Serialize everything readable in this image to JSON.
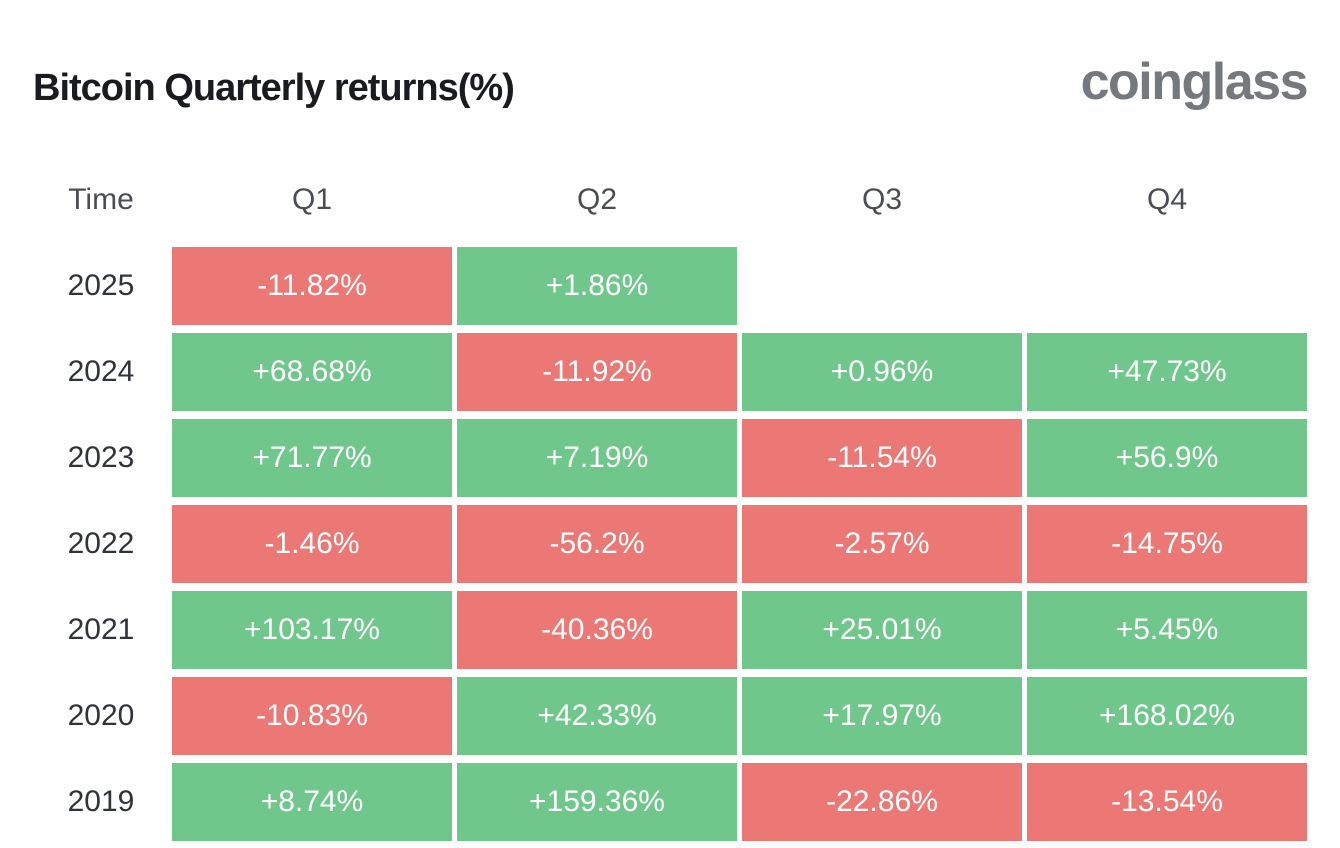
{
  "page": {
    "title": "Bitcoin Quarterly returns(%)",
    "logo": "coinglass"
  },
  "colors": {
    "positive": "#70C78C",
    "negative": "#EB7874",
    "cell_text": "#FFFFFF",
    "title_text": "#1A1B1F",
    "header_text": "#4A4D53",
    "year_text": "#303338",
    "logo_text": "#75787C",
    "background": "#FFFFFF"
  },
  "chart_data": {
    "type": "table",
    "title": "Bitcoin Quarterly returns(%)",
    "columns": [
      "Time",
      "Q1",
      "Q2",
      "Q3",
      "Q4"
    ],
    "legend": {
      "positive_color": "#70C78C",
      "negative_color": "#EB7874"
    },
    "rows": [
      {
        "year": "2025",
        "values": [
          "-11.82%",
          "+1.86%",
          null,
          null
        ]
      },
      {
        "year": "2024",
        "values": [
          "+68.68%",
          "-11.92%",
          "+0.96%",
          "+47.73%"
        ]
      },
      {
        "year": "2023",
        "values": [
          "+71.77%",
          "+7.19%",
          "-11.54%",
          "+56.9%"
        ]
      },
      {
        "year": "2022",
        "values": [
          "-1.46%",
          "-56.2%",
          "-2.57%",
          "-14.75%"
        ]
      },
      {
        "year": "2021",
        "values": [
          "+103.17%",
          "-40.36%",
          "+25.01%",
          "+5.45%"
        ]
      },
      {
        "year": "2020",
        "values": [
          "-10.83%",
          "+42.33%",
          "+17.97%",
          "+168.02%"
        ]
      },
      {
        "year": "2019",
        "values": [
          "+8.74%",
          "+159.36%",
          "-22.86%",
          "-13.54%"
        ]
      }
    ]
  }
}
